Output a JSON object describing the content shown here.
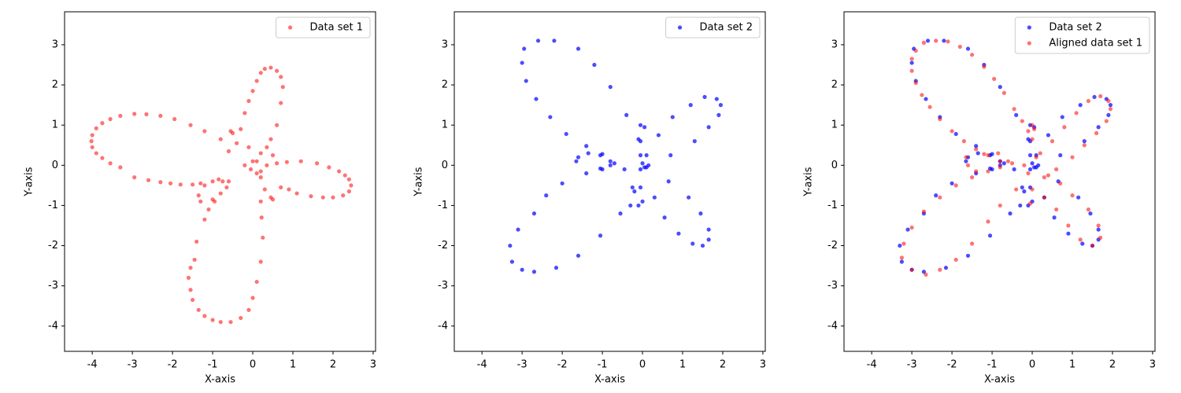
{
  "chart_data": [
    {
      "type": "scatter",
      "xlabel": "X-axis",
      "ylabel": "Y-axis",
      "xlim": [
        -4.69,
        3.06
      ],
      "ylim": [
        -4.63,
        3.82
      ],
      "xticks": [
        -4,
        -3,
        -2,
        -1,
        0,
        1,
        2,
        3
      ],
      "yticks": [
        -4,
        -3,
        -2,
        -1,
        0,
        1,
        2,
        3
      ],
      "legend": "upper right",
      "series": [
        {
          "name": "Data set 1",
          "color": "#ff0000",
          "alpha": 0.55,
          "x": [
            -1.2,
            -1.55,
            -1.95,
            -2.3,
            -2.65,
            -2.95,
            -3.3,
            -3.55,
            -3.75,
            -3.9,
            -4.0,
            -4.02,
            -4.0,
            -3.9,
            -3.75,
            -3.55,
            -3.3,
            -2.95,
            -2.6,
            -2.3,
            -2.05,
            -1.8,
            -1.5,
            -1.3,
            -1.0,
            -0.85,
            -0.6,
            -0.55,
            -0.4,
            -0.3,
            -0.2,
            -0.1,
            0.0,
            0.1,
            0.2,
            0.3,
            0.45,
            0.6,
            0.7,
            0.75,
            0.7,
            0.6,
            0.45,
            0.35,
            0.2,
            0.1,
            0.35,
            0.6,
            0.85,
            1.2,
            1.6,
            1.9,
            2.15,
            2.3,
            2.4,
            2.45,
            2.4,
            2.25,
            2.0,
            1.75,
            1.45,
            1.1,
            0.9,
            0.7,
            0.5,
            0.45,
            0.3,
            0.2,
            0.2,
            0.22,
            0.25,
            0.2,
            0.1,
            0.0,
            -0.1,
            -0.3,
            -0.55,
            -0.8,
            -1.0,
            -1.2,
            -1.35,
            -1.5,
            -1.55,
            -1.6,
            -1.55,
            -1.45,
            -1.4,
            -1.2,
            -1.1,
            -0.95,
            -0.8,
            -0.65,
            -0.75,
            -1.0,
            -1.3,
            -1.35,
            -1.2,
            -0.8,
            -0.6,
            -0.5,
            -0.1,
            -0.2,
            0.0,
            -0.05,
            0.1,
            0.5,
            0.2
          ],
          "values": [
            0.85,
            1.0,
            1.15,
            1.23,
            1.27,
            1.28,
            1.23,
            1.15,
            1.05,
            0.92,
            0.75,
            0.6,
            0.45,
            0.3,
            0.18,
            0.05,
            -0.05,
            -0.3,
            -0.37,
            -0.42,
            -0.45,
            -0.48,
            -0.48,
            -0.45,
            -0.4,
            -0.35,
            -0.4,
            0.85,
            0.55,
            0.9,
            1.3,
            1.6,
            1.85,
            2.1,
            2.3,
            2.4,
            2.43,
            2.35,
            2.2,
            1.95,
            1.55,
            1.0,
            0.65,
            0.45,
            0.3,
            0.1,
            0.0,
            0.05,
            0.08,
            0.1,
            0.05,
            -0.05,
            -0.15,
            -0.25,
            -0.35,
            -0.5,
            -0.65,
            -0.75,
            -0.8,
            -0.8,
            -0.77,
            -0.7,
            -0.6,
            -0.55,
            -0.85,
            -0.8,
            -0.6,
            -0.3,
            -0.9,
            -1.3,
            -1.8,
            -2.4,
            -2.9,
            -3.3,
            -3.6,
            -3.8,
            -3.9,
            -3.9,
            -3.85,
            -3.75,
            -3.6,
            -3.35,
            -3.1,
            -2.8,
            -2.55,
            -2.35,
            -1.9,
            -1.35,
            -1.1,
            -0.9,
            -0.7,
            -0.55,
            -0.4,
            -0.85,
            -0.9,
            -0.75,
            -0.5,
            0.65,
            0.35,
            0.8,
            0.45,
            0.0,
            0.1,
            -0.1,
            -0.2,
            0.25,
            -0.15
          ]
        }
      ]
    },
    {
      "type": "scatter",
      "xlabel": "X-axis",
      "ylabel": "Y-axis",
      "xlim": [
        -4.69,
        3.06
      ],
      "ylim": [
        -4.63,
        3.82
      ],
      "xticks": [
        -4,
        -3,
        -2,
        -1,
        0,
        1,
        2,
        3
      ],
      "yticks": [
        -4,
        -3,
        -2,
        -1,
        0,
        1,
        2,
        3
      ],
      "legend": "upper right",
      "series": [
        {
          "name": "Data set 2",
          "color": "#0000ff",
          "alpha": 0.7,
          "x": [
            -2.6,
            -2.2,
            -2.95,
            -3.0,
            -2.9,
            -2.65,
            -2.3,
            -1.9,
            -1.6,
            -1.2,
            -0.8,
            -0.4,
            -0.05,
            0.05,
            0.4,
            0.75,
            -0.1,
            -0.05,
            -1.4,
            -1.35,
            -1.6,
            -1.65,
            -1.0,
            -1.05,
            -0.8,
            -0.7,
            -0.8,
            -1.05,
            -1.0,
            -0.45,
            -1.4,
            -0.05,
            0.0,
            0.1,
            0.05,
            -0.05,
            0.15,
            -0.25,
            -0.2,
            -0.05,
            -0.3,
            -0.1,
            0.0,
            0.3,
            0.1,
            0.65,
            0.7,
            1.2,
            1.55,
            1.85,
            1.95,
            1.9,
            1.65,
            1.3,
            1.15,
            1.45,
            1.65,
            1.65,
            1.5,
            1.25,
            0.9,
            0.55,
            -0.55,
            -1.05,
            -1.6,
            -2.15,
            -2.7,
            -3.0,
            -3.25,
            -3.3,
            -3.1,
            -2.7,
            -2.4,
            -2.0
          ],
          "values": [
            3.1,
            3.1,
            2.9,
            2.55,
            2.1,
            1.65,
            1.2,
            0.78,
            2.9,
            2.5,
            1.95,
            1.25,
            1.0,
            0.95,
            0.75,
            1.2,
            0.65,
            0.6,
            0.48,
            0.3,
            0.2,
            0.1,
            0.28,
            0.25,
            0.1,
            0.05,
            0.0,
            -0.08,
            -0.1,
            -0.1,
            -0.2,
            0.25,
            0.05,
            -0.05,
            -0.05,
            -0.1,
            0.0,
            -0.55,
            -0.65,
            -0.55,
            -1.0,
            -1.0,
            -0.9,
            -0.8,
            0.25,
            -0.4,
            0.25,
            1.5,
            1.7,
            1.65,
            1.5,
            1.25,
            0.95,
            0.6,
            -0.8,
            -1.2,
            -1.6,
            -1.85,
            -2.0,
            -1.95,
            -1.7,
            -1.3,
            -1.2,
            -1.75,
            -2.25,
            -2.55,
            -2.65,
            -2.6,
            -2.4,
            -2.0,
            -1.6,
            -1.2,
            -0.75,
            -0.45
          ]
        }
      ]
    },
    {
      "type": "scatter",
      "xlabel": "X-axis",
      "ylabel": "Y-axis",
      "xlim": [
        -4.69,
        3.06
      ],
      "ylim": [
        -4.63,
        3.82
      ],
      "xticks": [
        -4,
        -3,
        -2,
        -1,
        0,
        1,
        2,
        3
      ],
      "yticks": [
        -4,
        -3,
        -2,
        -1,
        0,
        1,
        2,
        3
      ],
      "legend": "upper right",
      "series": [
        {
          "name": "Data set 2",
          "color": "#0000ff",
          "alpha": 0.7,
          "x": [
            -2.6,
            -2.2,
            -2.95,
            -3.0,
            -2.9,
            -2.65,
            -2.3,
            -1.9,
            -1.6,
            -1.2,
            -0.8,
            -0.4,
            -0.05,
            0.05,
            0.4,
            0.75,
            -0.1,
            -0.05,
            -1.4,
            -1.35,
            -1.6,
            -1.65,
            -1.0,
            -1.05,
            -0.8,
            -0.7,
            -0.8,
            -1.05,
            -1.0,
            -0.45,
            -1.4,
            -0.05,
            0.0,
            0.1,
            0.05,
            -0.05,
            0.15,
            -0.25,
            -0.2,
            -0.05,
            -0.3,
            -0.1,
            0.0,
            0.3,
            0.1,
            0.65,
            0.7,
            1.2,
            1.55,
            1.85,
            1.95,
            1.9,
            1.65,
            1.3,
            1.15,
            1.45,
            1.65,
            1.65,
            1.5,
            1.25,
            0.9,
            0.55,
            -0.55,
            -1.05,
            -1.6,
            -2.15,
            -2.7,
            -3.0,
            -3.25,
            -3.3,
            -3.1,
            -2.7,
            -2.4,
            -2.0
          ],
          "values": [
            3.1,
            3.1,
            2.9,
            2.55,
            2.1,
            1.65,
            1.2,
            0.78,
            2.9,
            2.5,
            1.95,
            1.25,
            1.0,
            0.95,
            0.75,
            1.2,
            0.65,
            0.6,
            0.48,
            0.3,
            0.2,
            0.1,
            0.28,
            0.25,
            0.1,
            0.05,
            0.0,
            -0.08,
            -0.1,
            -0.1,
            -0.2,
            0.25,
            0.05,
            -0.05,
            -0.05,
            -0.1,
            0.0,
            -0.55,
            -0.65,
            -0.55,
            -1.0,
            -1.0,
            -0.9,
            -0.8,
            0.25,
            -0.4,
            0.25,
            1.5,
            1.7,
            1.65,
            1.5,
            1.25,
            0.95,
            0.6,
            -0.8,
            -1.2,
            -1.6,
            -1.85,
            -2.0,
            -1.95,
            -1.7,
            -1.3,
            -1.2,
            -1.75,
            -2.25,
            -2.55,
            -2.65,
            -2.6,
            -2.4,
            -2.0,
            -1.6,
            -1.2,
            -0.75,
            -0.45
          ]
        },
        {
          "name": "Aligned data set 1",
          "color": "#ff0000",
          "alpha": 0.55,
          "x": [
            -2.4,
            -2.1,
            -1.8,
            -1.5,
            -1.2,
            -0.95,
            -0.7,
            -0.45,
            -0.25,
            -0.1,
            0.0,
            -2.7,
            -2.9,
            -3.0,
            -3.0,
            -2.9,
            -2.75,
            -2.55,
            -2.3,
            -2.0,
            -1.7,
            -1.4,
            -1.1,
            -0.8,
            -0.5,
            -0.2,
            -1.65,
            -1.6,
            -1.4,
            -1.1,
            -0.8,
            -0.6,
            -0.85,
            -1.2,
            0.2,
            0.5,
            0.8,
            1.1,
            1.4,
            1.7,
            1.9,
            1.95,
            1.85,
            1.6,
            1.3,
            1.0,
            0.6,
            0.3,
            0.3,
            0.6,
            0.9,
            1.2,
            1.5,
            1.7,
            1.65,
            1.4,
            1.0,
            0.7,
            0.4,
            -0.4,
            -0.8,
            -1.1,
            -1.5,
            -1.9,
            -2.3,
            -2.65,
            -3.0,
            -3.25,
            -3.2,
            -3.0,
            -2.7,
            -2.3,
            -1.9,
            -1.5,
            0.0,
            0.05,
            -0.05,
            0.0,
            0.1,
            -0.1
          ],
          "values": [
            3.1,
            3.08,
            2.95,
            2.75,
            2.45,
            2.15,
            1.8,
            1.4,
            1.1,
            0.85,
            0.65,
            3.05,
            2.85,
            2.65,
            2.35,
            2.05,
            1.75,
            1.45,
            1.15,
            0.85,
            0.6,
            0.4,
            0.25,
            0.1,
            0.05,
            0.0,
            0.2,
            0.0,
            -0.15,
            -0.15,
            -0.05,
            0.1,
            0.3,
            0.28,
            0.3,
            0.6,
            0.95,
            1.3,
            1.6,
            1.72,
            1.6,
            1.4,
            1.1,
            0.8,
            0.5,
            0.2,
            -0.1,
            -0.3,
            -0.8,
            -1.1,
            -1.5,
            -1.85,
            -2.0,
            -1.8,
            -1.5,
            -1.1,
            -0.75,
            -0.45,
            -0.25,
            -0.6,
            -1.0,
            -1.4,
            -1.95,
            -2.35,
            -2.6,
            -2.72,
            -2.6,
            -2.3,
            -1.95,
            -1.55,
            -1.15,
            -0.8,
            -0.5,
            -0.3,
            1.0,
            0.9,
            -0.95,
            -0.6,
            0.2,
            -0.2
          ]
        }
      ]
    }
  ]
}
